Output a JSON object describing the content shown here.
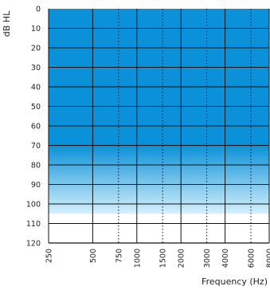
{
  "chart_data": {
    "type": "heatmap",
    "title": "",
    "ylabel": "dB HL",
    "xlabel": "Frequency (Hz)",
    "y_ticks": [
      "0",
      "10",
      "20",
      "30",
      "40",
      "50",
      "60",
      "70",
      "80",
      "90",
      "100",
      "110",
      "120"
    ],
    "ylim": [
      0,
      120
    ],
    "y_reversed": true,
    "x_scale": "log",
    "x_ticks": [
      "250",
      "500",
      "750",
      "1000",
      "1500",
      "2000",
      "3000",
      "4000",
      "6000",
      "8000"
    ],
    "x_values": [
      250,
      500,
      750,
      1000,
      1500,
      2000,
      3000,
      4000,
      6000,
      8000
    ],
    "xlim": [
      250,
      8000
    ],
    "solid_lines_at": [
      250,
      500,
      1000,
      2000,
      4000,
      8000
    ],
    "dotted_lines_at": [
      750,
      1500,
      3000,
      6000
    ],
    "shaded_region": {
      "y_from": 0,
      "y_to": 105,
      "solid_until": 70,
      "color": "#0A91D9",
      "fade_color": "#D6F0FB"
    },
    "grid": true,
    "colors": {
      "grid": "#111111",
      "tick": "#222222",
      "fill": "#0A91D9"
    }
  }
}
